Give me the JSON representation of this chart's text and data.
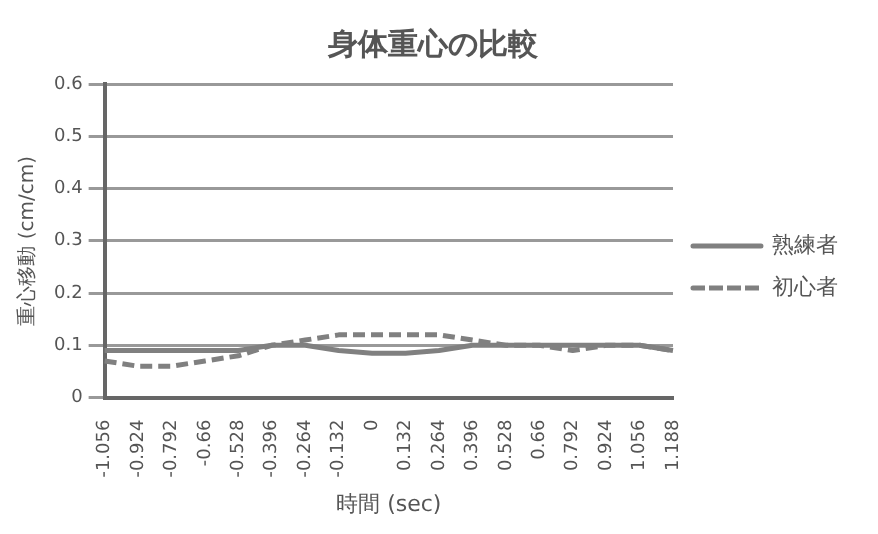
{
  "chart_data": {
    "type": "line",
    "title": "身体重心の比較",
    "xlabel": "時間 (sec)",
    "ylabel": "重心移動 (cm/cm)",
    "categories": [
      "-1.056",
      "-0.924",
      "-0.792",
      "-0.66",
      "-0.528",
      "-0.396",
      "-0.264",
      "-0.132",
      "0",
      "0.132",
      "0.264",
      "0.396",
      "0.528",
      "0.66",
      "0.792",
      "0.924",
      "1.056",
      "1.188"
    ],
    "series": [
      {
        "name": "熟練者",
        "color": "#808080",
        "line_style": "solid",
        "values": [
          0.09,
          0.09,
          0.09,
          0.09,
          0.09,
          0.1,
          0.1,
          0.09,
          0.085,
          0.085,
          0.09,
          0.1,
          0.1,
          0.1,
          0.1,
          0.1,
          0.1,
          0.09
        ]
      },
      {
        "name": "初心者",
        "color": "#808080",
        "line_style": "dashed",
        "values": [
          0.07,
          0.06,
          0.06,
          0.07,
          0.08,
          0.1,
          0.11,
          0.12,
          0.12,
          0.12,
          0.12,
          0.11,
          0.1,
          0.1,
          0.09,
          0.1,
          0.1,
          0.09
        ]
      }
    ],
    "ylim": [
      0,
      0.6
    ],
    "yticks": [
      0,
      0.1,
      0.2,
      0.3,
      0.4,
      0.5,
      0.6
    ],
    "grid": "y",
    "legend": "right",
    "marker": "none"
  }
}
